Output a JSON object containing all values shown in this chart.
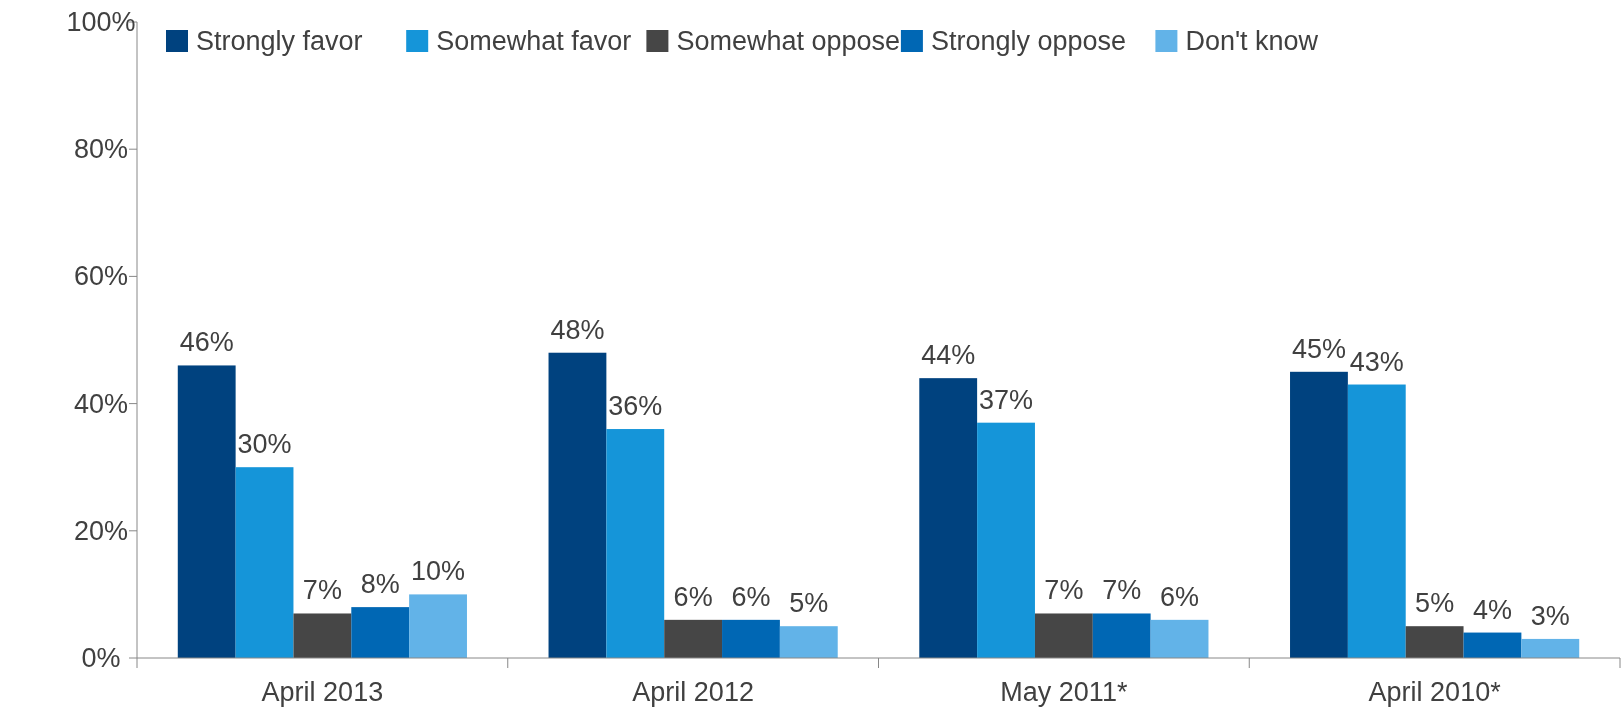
{
  "chart_data": {
    "type": "bar",
    "categories": [
      "April 2013",
      "April 2012",
      "May 2011*",
      "April 2010*"
    ],
    "series": [
      {
        "name": "Strongly favor",
        "color": "#00427f",
        "values": [
          46,
          48,
          44,
          45
        ],
        "value_labels": [
          "46%",
          "48%",
          "44%",
          "45%"
        ]
      },
      {
        "name": "Somewhat favor",
        "color": "#1595d9",
        "values": [
          30,
          36,
          37,
          43
        ],
        "value_labels": [
          "30%",
          "36%",
          "37%",
          "43%"
        ]
      },
      {
        "name": "Somewhat oppose",
        "color": "#464646",
        "values": [
          7,
          6,
          7,
          5
        ],
        "value_labels": [
          "7%",
          "6%",
          "7%",
          "5%"
        ]
      },
      {
        "name": "Strongly oppose",
        "color": "#0067b4",
        "values": [
          8,
          6,
          7,
          4
        ],
        "value_labels": [
          "8%",
          "6%",
          "7%",
          "4%"
        ]
      },
      {
        "name": "Don't know",
        "color": "#62b3e8",
        "values": [
          10,
          5,
          6,
          3
        ],
        "value_labels": [
          "10%",
          "5%",
          "6%",
          "3%"
        ]
      }
    ],
    "ylim": [
      0,
      100
    ],
    "yticks": [
      {
        "value": 0,
        "label": "0%"
      },
      {
        "value": 20,
        "label": "20%"
      },
      {
        "value": 40,
        "label": "40%"
      },
      {
        "value": 60,
        "label": "60%"
      },
      {
        "value": 80,
        "label": "80%"
      },
      {
        "value": 100,
        "label": "100%"
      }
    ],
    "grid": false,
    "legend": "top"
  }
}
